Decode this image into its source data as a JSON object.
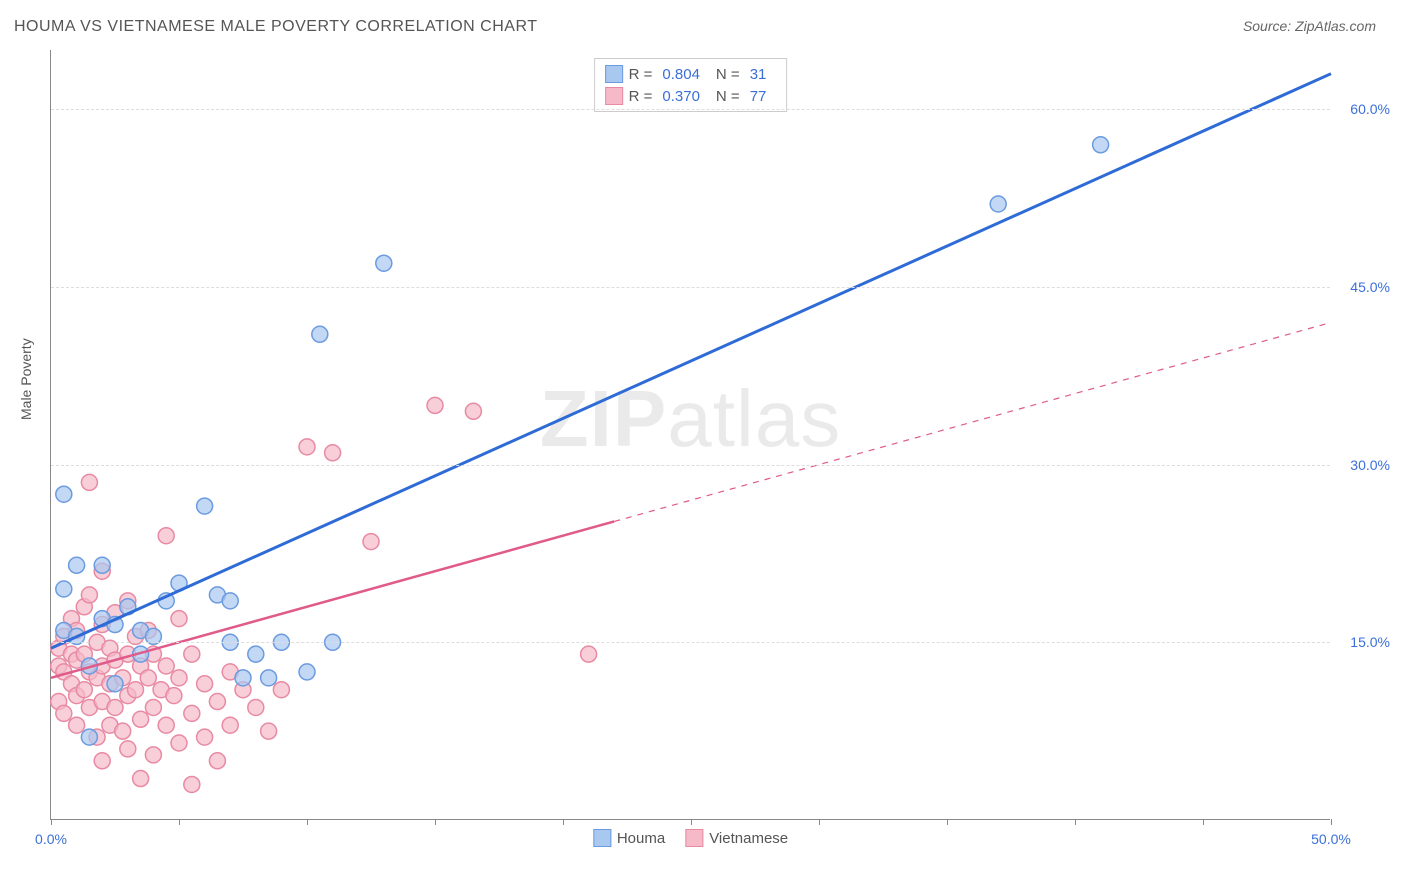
{
  "title": "HOUMA VS VIETNAMESE MALE POVERTY CORRELATION CHART",
  "source": "Source: ZipAtlas.com",
  "y_axis_label": "Male Poverty",
  "watermark": {
    "bold": "ZIP",
    "rest": "atlas"
  },
  "chart": {
    "type": "scatter",
    "xlim": [
      0,
      50
    ],
    "ylim": [
      0,
      65
    ],
    "x_ticks": [
      0,
      5,
      10,
      15,
      20,
      25,
      30,
      35,
      40,
      45,
      50
    ],
    "x_tick_labels": {
      "0": "0.0%",
      "50": "50.0%"
    },
    "y_ticks": [
      15,
      30,
      45,
      60
    ],
    "y_tick_labels": {
      "15": "15.0%",
      "30": "30.0%",
      "45": "45.0%",
      "60": "60.0%"
    },
    "background_color": "#ffffff",
    "grid_color": "#dddddd",
    "axis_color": "#888888",
    "marker_radius": 8,
    "marker_stroke_width": 1.5,
    "series": [
      {
        "name": "Houma",
        "fill_color": "#a9c8f0",
        "stroke_color": "#6b9be0",
        "line_color": "#2e6bd6",
        "line_width": 3,
        "r_value": "0.804",
        "n_value": "31",
        "regression": {
          "x1": 0,
          "y1": 14.5,
          "x2": 50,
          "y2": 63,
          "solid_to_x": 50
        },
        "points": [
          [
            0.5,
            27.5
          ],
          [
            0.5,
            19.5
          ],
          [
            0.5,
            16
          ],
          [
            1,
            21.5
          ],
          [
            1,
            15.5
          ],
          [
            1.5,
            7
          ],
          [
            1.5,
            13
          ],
          [
            2,
            21.5
          ],
          [
            2,
            17
          ],
          [
            2.5,
            11.5
          ],
          [
            2.5,
            16.5
          ],
          [
            3,
            18
          ],
          [
            3.5,
            14
          ],
          [
            3.5,
            16
          ],
          [
            4,
            15.5
          ],
          [
            4.5,
            18.5
          ],
          [
            5,
            20
          ],
          [
            6,
            26.5
          ],
          [
            6.5,
            19
          ],
          [
            7,
            18.5
          ],
          [
            7,
            15
          ],
          [
            7.5,
            12
          ],
          [
            8,
            14
          ],
          [
            8.5,
            12
          ],
          [
            9,
            15
          ],
          [
            10,
            12.5
          ],
          [
            10.5,
            41
          ],
          [
            11,
            15
          ],
          [
            13,
            47
          ],
          [
            37,
            52
          ],
          [
            41,
            57
          ]
        ]
      },
      {
        "name": "Vietnamese",
        "fill_color": "#f5b9c8",
        "stroke_color": "#e88aa3",
        "line_color": "#e05a8a",
        "line_width": 2.5,
        "r_value": "0.370",
        "n_value": "77",
        "regression": {
          "x1": 0,
          "y1": 12,
          "x2": 50,
          "y2": 42,
          "solid_to_x": 22
        },
        "points": [
          [
            0.3,
            14.5
          ],
          [
            0.3,
            13
          ],
          [
            0.3,
            10
          ],
          [
            0.5,
            15.5
          ],
          [
            0.5,
            12.5
          ],
          [
            0.5,
            9
          ],
          [
            0.8,
            17
          ],
          [
            0.8,
            14
          ],
          [
            0.8,
            11.5
          ],
          [
            1,
            16
          ],
          [
            1,
            13.5
          ],
          [
            1,
            10.5
          ],
          [
            1,
            8
          ],
          [
            1.3,
            18
          ],
          [
            1.3,
            14
          ],
          [
            1.3,
            11
          ],
          [
            1.5,
            28.5
          ],
          [
            1.5,
            19
          ],
          [
            1.5,
            12.5
          ],
          [
            1.5,
            9.5
          ],
          [
            1.8,
            15
          ],
          [
            1.8,
            12
          ],
          [
            1.8,
            7
          ],
          [
            2,
            21
          ],
          [
            2,
            16.5
          ],
          [
            2,
            13
          ],
          [
            2,
            10
          ],
          [
            2,
            5
          ],
          [
            2.3,
            14.5
          ],
          [
            2.3,
            11.5
          ],
          [
            2.3,
            8
          ],
          [
            2.5,
            17.5
          ],
          [
            2.5,
            13.5
          ],
          [
            2.5,
            9.5
          ],
          [
            2.8,
            12
          ],
          [
            2.8,
            7.5
          ],
          [
            3,
            18.5
          ],
          [
            3,
            14
          ],
          [
            3,
            10.5
          ],
          [
            3,
            6
          ],
          [
            3.3,
            15.5
          ],
          [
            3.3,
            11
          ],
          [
            3.5,
            13
          ],
          [
            3.5,
            8.5
          ],
          [
            3.5,
            3.5
          ],
          [
            3.8,
            16
          ],
          [
            3.8,
            12
          ],
          [
            4,
            14
          ],
          [
            4,
            9.5
          ],
          [
            4,
            5.5
          ],
          [
            4.3,
            11
          ],
          [
            4.5,
            24
          ],
          [
            4.5,
            13
          ],
          [
            4.5,
            8
          ],
          [
            4.8,
            10.5
          ],
          [
            5,
            17
          ],
          [
            5,
            12
          ],
          [
            5,
            6.5
          ],
          [
            5.5,
            14
          ],
          [
            5.5,
            9
          ],
          [
            5.5,
            3
          ],
          [
            6,
            11.5
          ],
          [
            6,
            7
          ],
          [
            6.5,
            10
          ],
          [
            6.5,
            5
          ],
          [
            7,
            12.5
          ],
          [
            7,
            8
          ],
          [
            7.5,
            11
          ],
          [
            8,
            9.5
          ],
          [
            8.5,
            7.5
          ],
          [
            9,
            11
          ],
          [
            10,
            31.5
          ],
          [
            11,
            31
          ],
          [
            12.5,
            23.5
          ],
          [
            15,
            35
          ],
          [
            16.5,
            34.5
          ],
          [
            21,
            14
          ]
        ]
      }
    ]
  },
  "legend_labels": {
    "r": "R =",
    "n": "N ="
  },
  "bottom_legend": [
    "Houma",
    "Vietnamese"
  ]
}
